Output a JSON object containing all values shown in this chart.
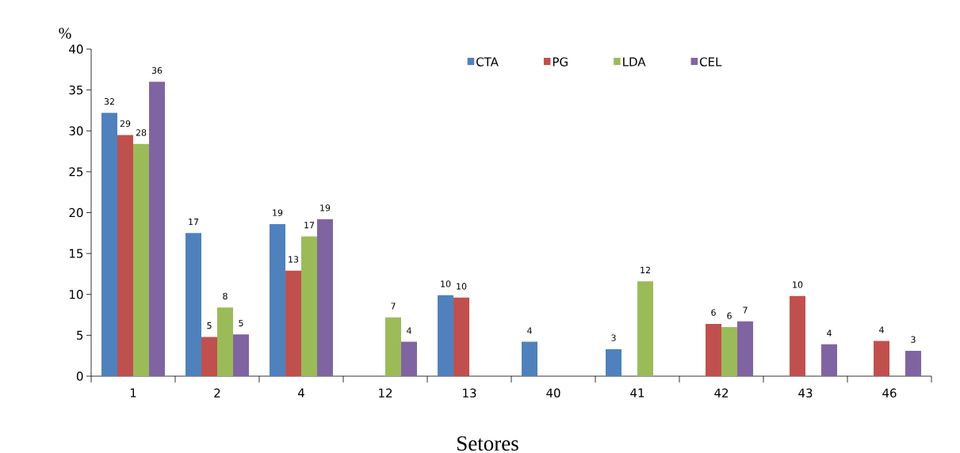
{
  "chart_data": {
    "type": "bar",
    "xlabel": "Setores",
    "ylabel": "%",
    "categories": [
      "1",
      "2",
      "4",
      "12",
      "13",
      "40",
      "41",
      "42",
      "43",
      "46"
    ],
    "series": [
      {
        "name": "CTA",
        "color": "#4f81bd",
        "values": [
          32.2,
          17.5,
          18.6,
          null,
          9.9,
          4.2,
          3.3,
          null,
          null,
          null
        ],
        "value_labels": [
          "32",
          "17",
          "19",
          null,
          "10",
          "4",
          "3",
          null,
          null,
          null
        ]
      },
      {
        "name": "PG",
        "color": "#c0504d",
        "values": [
          29.5,
          4.8,
          12.9,
          null,
          9.6,
          null,
          null,
          6.4,
          9.8,
          4.3
        ],
        "value_labels": [
          "29",
          "5",
          "13",
          null,
          "10",
          null,
          null,
          "6",
          "10",
          "4"
        ]
      },
      {
        "name": "LDA",
        "color": "#9bbb59",
        "values": [
          28.4,
          8.4,
          17.1,
          7.2,
          null,
          null,
          11.6,
          6.0,
          null,
          null
        ],
        "value_labels": [
          "28",
          "8",
          "17",
          "7",
          null,
          null,
          "12",
          "6",
          null,
          null
        ]
      },
      {
        "name": "CEL",
        "color": "#8064a2",
        "values": [
          36.0,
          5.1,
          19.2,
          4.2,
          null,
          null,
          null,
          6.7,
          3.9,
          3.1
        ],
        "value_labels": [
          "36",
          "5",
          "19",
          "4",
          null,
          null,
          null,
          "7",
          "4",
          "3"
        ]
      }
    ],
    "ylim": [
      0,
      40
    ],
    "yticks": [
      0,
      5,
      10,
      15,
      20,
      25,
      30,
      35,
      40
    ],
    "grid": false,
    "legend": "top"
  }
}
